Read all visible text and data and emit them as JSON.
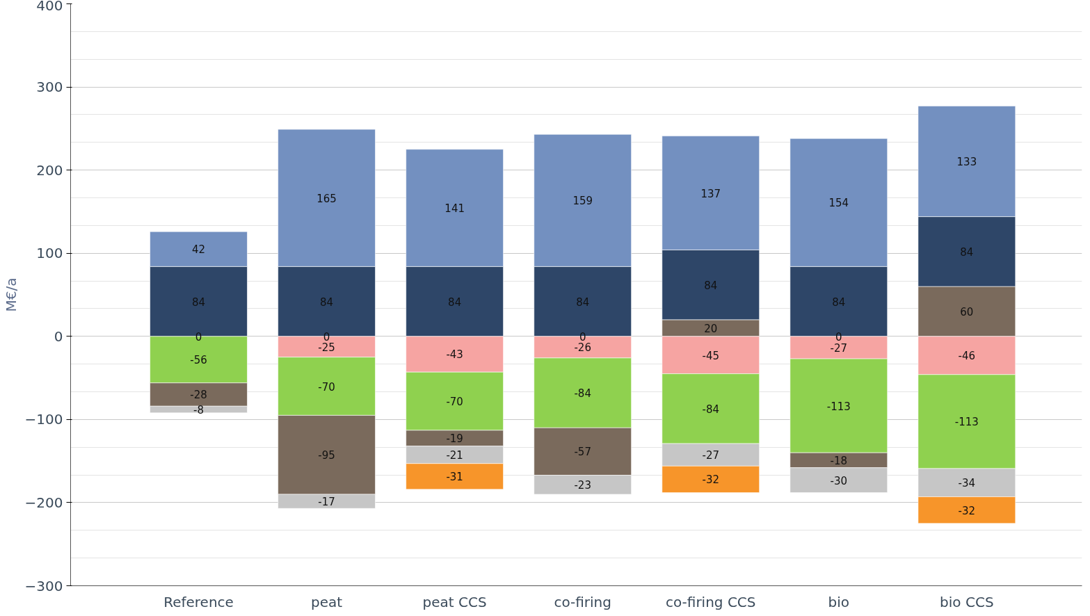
{
  "chart_data": {
    "type": "bar",
    "stacked": true,
    "ylabel": "M€/a",
    "categories": [
      "Reference",
      "peat",
      "peat CCS",
      "co-firing",
      "co-firing CCS",
      "bio",
      "bio CCS"
    ],
    "series": [
      {
        "color": "#7a6a5c",
        "values": [
          null,
          null,
          null,
          null,
          20,
          null,
          60
        ]
      },
      {
        "color": "#2e4668",
        "values": [
          84,
          84,
          84,
          84,
          84,
          84,
          84
        ]
      },
      {
        "color": "#7390c0",
        "values": [
          42,
          165,
          141,
          159,
          137,
          154,
          133
        ]
      },
      {
        "color": "#f6a4a2",
        "values": [
          null,
          -25,
          -43,
          -26,
          -45,
          -27,
          -46
        ]
      },
      {
        "color": "#8fd14f",
        "values": [
          -56,
          -70,
          -70,
          -84,
          -84,
          -113,
          -113
        ]
      },
      {
        "color": "#7a6a5c",
        "values": [
          -28,
          -95,
          -19,
          -57,
          null,
          -18,
          null
        ]
      },
      {
        "color": "#c6c6c6",
        "values": [
          -8,
          -17,
          -21,
          -23,
          -27,
          -30,
          -34
        ]
      },
      {
        "color": "#f7952a",
        "values": [
          null,
          null,
          -31,
          null,
          -32,
          null,
          -32
        ]
      }
    ],
    "ylim": [
      -300,
      400
    ],
    "yticks": [
      -300,
      -200,
      -100,
      0,
      100,
      200,
      300,
      400
    ],
    "annotations": [
      {
        "text": "0",
        "x": "Reference",
        "y": 0
      },
      {
        "text": "0",
        "x": "peat",
        "y": 0
      },
      {
        "text": "0",
        "x": "co-firing",
        "y": 0
      },
      {
        "text": "0",
        "x": "bio",
        "y": 0
      }
    ],
    "grid": "y",
    "data_labels": true
  }
}
